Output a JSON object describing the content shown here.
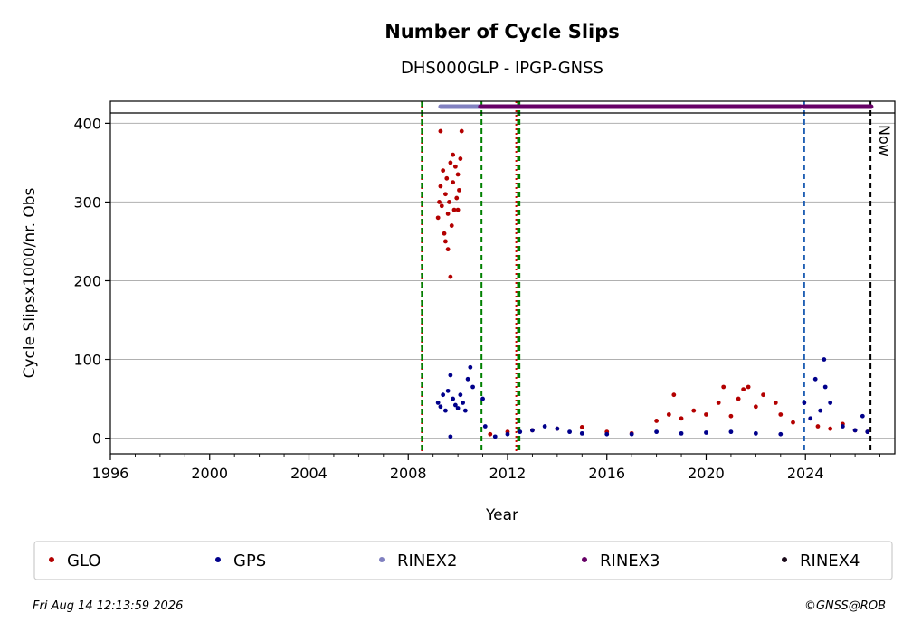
{
  "chart_data": {
    "type": "scatter",
    "title": "Number of Cycle Slips",
    "subtitle": "DHS000GLP - IPGP-GNSS",
    "xlabel": "Year",
    "ylabel": "Cycle Slipsx1000/nr. Obs",
    "xlim": [
      1996,
      2027.6
    ],
    "ylim": [
      -20,
      428
    ],
    "xticks": [
      1996,
      2000,
      2004,
      2008,
      2012,
      2016,
      2020,
      2024
    ],
    "yticks": [
      0,
      100,
      200,
      300,
      400
    ],
    "grid": "y",
    "legend_position": "bottom",
    "vlines": [
      {
        "x": 2008.55,
        "color": "#cc0000",
        "style": "dotted"
      },
      {
        "x": 2008.55,
        "color": "#008000",
        "style": "dashed"
      },
      {
        "x": 2010.95,
        "color": "#008000",
        "style": "dashed"
      },
      {
        "x": 2012.35,
        "color": "#cc0000",
        "style": "dotted"
      },
      {
        "x": 2012.42,
        "color": "#008000",
        "style": "dashed"
      },
      {
        "x": 2012.48,
        "color": "#008000",
        "style": "dashed"
      },
      {
        "x": 2023.95,
        "color": "#1f5fb4",
        "style": "dashed"
      },
      {
        "x": 2026.62,
        "color": "#000000",
        "style": "dashed"
      }
    ],
    "now_label": "Now",
    "series": [
      {
        "name": "GLO",
        "color": "#b30000",
        "points": [
          [
            2009.2,
            280
          ],
          [
            2009.3,
            320
          ],
          [
            2009.35,
            295
          ],
          [
            2009.4,
            340
          ],
          [
            2009.45,
            260
          ],
          [
            2009.5,
            310
          ],
          [
            2009.55,
            330
          ],
          [
            2009.6,
            285
          ],
          [
            2009.65,
            300
          ],
          [
            2009.7,
            350
          ],
          [
            2009.75,
            270
          ],
          [
            2009.8,
            325
          ],
          [
            2009.85,
            290
          ],
          [
            2009.9,
            345
          ],
          [
            2009.95,
            305
          ],
          [
            2010.0,
            335
          ],
          [
            2010.05,
            315
          ],
          [
            2010.1,
            355
          ],
          [
            2009.3,
            390
          ],
          [
            2009.5,
            250
          ],
          [
            2009.7,
            205
          ],
          [
            2010.15,
            390
          ],
          [
            2009.6,
            240
          ],
          [
            2009.25,
            300
          ],
          [
            2009.8,
            360
          ],
          [
            2010.0,
            290
          ],
          [
            2011.3,
            5
          ],
          [
            2012.0,
            8
          ],
          [
            2013.0,
            10
          ],
          [
            2014.0,
            12
          ],
          [
            2015.0,
            14
          ],
          [
            2016.0,
            8
          ],
          [
            2017.0,
            6
          ],
          [
            2018.0,
            22
          ],
          [
            2018.5,
            30
          ],
          [
            2018.7,
            55
          ],
          [
            2019.0,
            25
          ],
          [
            2019.5,
            35
          ],
          [
            2020.0,
            30
          ],
          [
            2020.5,
            45
          ],
          [
            2020.7,
            65
          ],
          [
            2021.0,
            28
          ],
          [
            2021.3,
            50
          ],
          [
            2021.5,
            62
          ],
          [
            2021.7,
            65
          ],
          [
            2022.0,
            40
          ],
          [
            2022.3,
            55
          ],
          [
            2022.8,
            45
          ],
          [
            2023.0,
            30
          ],
          [
            2023.5,
            20
          ],
          [
            2024.5,
            15
          ],
          [
            2025.0,
            12
          ],
          [
            2025.5,
            18
          ],
          [
            2026.0,
            10
          ],
          [
            2026.5,
            8
          ]
        ]
      },
      {
        "name": "GPS",
        "color": "#00008b",
        "points": [
          [
            2009.2,
            45
          ],
          [
            2009.3,
            40
          ],
          [
            2009.4,
            55
          ],
          [
            2009.5,
            35
          ],
          [
            2009.6,
            60
          ],
          [
            2009.7,
            80
          ],
          [
            2009.8,
            50
          ],
          [
            2009.9,
            42
          ],
          [
            2010.0,
            38
          ],
          [
            2010.1,
            55
          ],
          [
            2010.2,
            45
          ],
          [
            2010.3,
            35
          ],
          [
            2010.4,
            75
          ],
          [
            2010.5,
            90
          ],
          [
            2010.6,
            65
          ],
          [
            2009.7,
            2
          ],
          [
            2011.0,
            50
          ],
          [
            2011.1,
            15
          ],
          [
            2011.5,
            2
          ],
          [
            2012.0,
            5
          ],
          [
            2012.5,
            8
          ],
          [
            2013.0,
            10
          ],
          [
            2013.5,
            15
          ],
          [
            2014.0,
            12
          ],
          [
            2014.5,
            8
          ],
          [
            2015.0,
            6
          ],
          [
            2016.0,
            5
          ],
          [
            2017.0,
            5
          ],
          [
            2018.0,
            8
          ],
          [
            2019.0,
            6
          ],
          [
            2020.0,
            7
          ],
          [
            2021.0,
            8
          ],
          [
            2022.0,
            6
          ],
          [
            2023.0,
            5
          ],
          [
            2023.95,
            45
          ],
          [
            2024.2,
            25
          ],
          [
            2024.4,
            75
          ],
          [
            2024.6,
            35
          ],
          [
            2024.75,
            100
          ],
          [
            2024.8,
            65
          ],
          [
            2025.0,
            45
          ],
          [
            2025.5,
            15
          ],
          [
            2026.0,
            10
          ],
          [
            2026.3,
            28
          ],
          [
            2026.5,
            8
          ]
        ]
      }
    ],
    "rinex_bars": [
      {
        "name": "RINEX2",
        "color": "#8080c0",
        "from": 2009.3,
        "to": 2010.85
      },
      {
        "name": "RINEX3",
        "color": "#660066",
        "from": 2010.9,
        "to": 2023.8
      },
      {
        "name": "RINEX3",
        "color": "#660066",
        "from": 2023.9,
        "to": 2026.65
      }
    ],
    "legend": [
      {
        "label": "GLO",
        "color": "#b30000"
      },
      {
        "label": "GPS",
        "color": "#00008b"
      },
      {
        "label": "RINEX2",
        "color": "#8080c0"
      },
      {
        "label": "RINEX3",
        "color": "#660066"
      },
      {
        "label": "RINEX4",
        "color": "#1a0a1a"
      }
    ],
    "timestamp": "Fri Aug 14 12:13:59 2026",
    "copyright": "©GNSS@ROB"
  }
}
